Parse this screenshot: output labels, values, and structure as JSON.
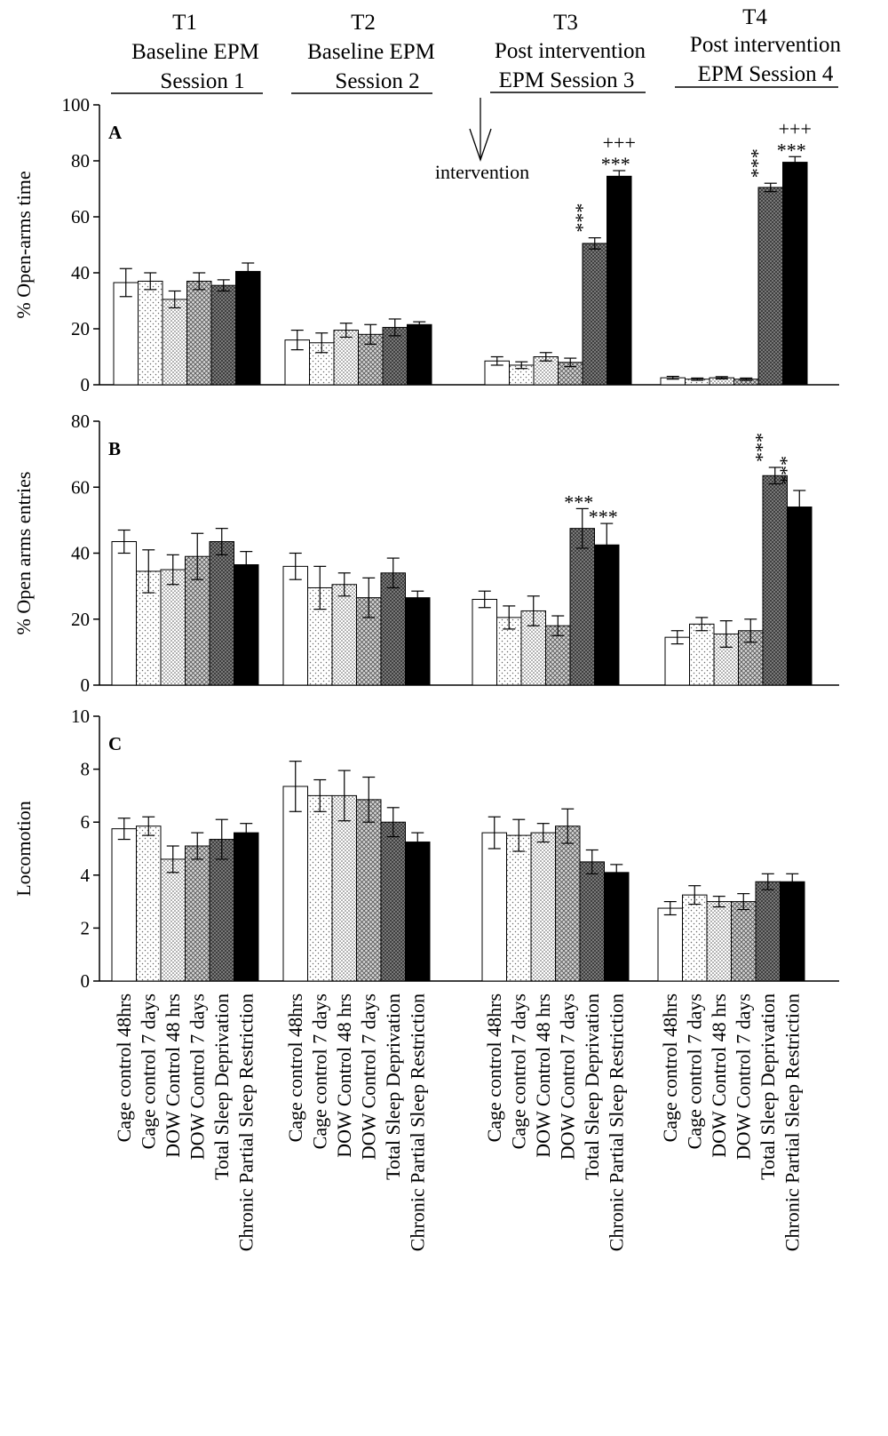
{
  "colors": {
    "cage_48": "#ffffff",
    "cage_7": "#ffffff",
    "dow_48": "#ffffff",
    "dow_7": "#ffffff",
    "tsd": "#6e6e6e",
    "cpsr": "#000000"
  },
  "fills": [
    "plain",
    "sparse-dots",
    "dense-dots",
    "crosshatch",
    "dark-crosshatch",
    "solid"
  ],
  "headers": [
    {
      "line1": "T1",
      "line2": "Baseline EPM",
      "line3": "Session 1"
    },
    {
      "line1": "T2",
      "line2": "Baseline EPM",
      "line3": "Session 2"
    },
    {
      "line1": "T3",
      "line2": "Post intervention",
      "line3": "EPM Session 3"
    },
    {
      "line1": "T4",
      "line2": "Post intervention",
      "line3": "EPM Session 4"
    }
  ],
  "intervention_label": "intervention",
  "category_labels": [
    "Cage control 48hrs",
    "Cage control 7 days",
    "DOW  Control 48 hrs",
    "DOW  Control 7 days",
    "Total Sleep Deprivation",
    "Chronic Partial Sleep  Restriction"
  ],
  "chart_data": [
    {
      "type": "bar",
      "panel_label": "A",
      "ylabel": "% Open-arms time",
      "ylim": [
        0,
        100
      ],
      "yticks": [
        "0",
        "20",
        "40",
        "60",
        "80",
        "100"
      ],
      "groups": [
        "T1",
        "T2",
        "T3",
        "T4"
      ],
      "series": [
        {
          "name": "Cage control 48hrs",
          "values": [
            36.5,
            16,
            8.5,
            2.5
          ],
          "errors": [
            5,
            3.5,
            1.5,
            0.5
          ]
        },
        {
          "name": "Cage control 7 days",
          "values": [
            37,
            15,
            7,
            2
          ],
          "errors": [
            3,
            3.5,
            1.2,
            0.4
          ]
        },
        {
          "name": "DOW  Control 48 hrs",
          "values": [
            30.5,
            19.5,
            10,
            2.5
          ],
          "errors": [
            3,
            2.5,
            1.5,
            0.4
          ]
        },
        {
          "name": "DOW  Control 7 days",
          "values": [
            37,
            18,
            8,
            2
          ],
          "errors": [
            3,
            3.5,
            1.5,
            0.4
          ]
        },
        {
          "name": "Total Sleep Deprivation",
          "values": [
            35.5,
            20.5,
            50.5,
            70.5
          ],
          "errors": [
            2,
            3,
            2,
            1.5
          ]
        },
        {
          "name": "Chronic Partial Sleep  Restriction",
          "values": [
            40.5,
            21.5,
            74.5,
            79.5
          ],
          "errors": [
            3,
            1,
            2,
            2
          ]
        }
      ],
      "annotations": [
        {
          "group": 2,
          "series": 4,
          "text": "***",
          "vertical": true
        },
        {
          "group": 2,
          "series": 5,
          "text": "***",
          "vertical": false
        },
        {
          "group": 2,
          "series": 5,
          "text": "+++",
          "vertical": false,
          "row": 2
        },
        {
          "group": 3,
          "series": 4,
          "text": "***",
          "vertical": true
        },
        {
          "group": 3,
          "series": 5,
          "text": "***",
          "vertical": false
        },
        {
          "group": 3,
          "series": 5,
          "text": "+++",
          "vertical": false,
          "row": 2
        }
      ]
    },
    {
      "type": "bar",
      "panel_label": "B",
      "ylabel": "% Open arms entries",
      "ylim": [
        0,
        80
      ],
      "yticks": [
        "0",
        "20",
        "40",
        "60",
        "80"
      ],
      "groups": [
        "T1",
        "T2",
        "T3",
        "T4"
      ],
      "series": [
        {
          "name": "Cage control 48hrs",
          "values": [
            43.5,
            36,
            26,
            14.5
          ],
          "errors": [
            3.5,
            4,
            2.5,
            2
          ]
        },
        {
          "name": "Cage control 7 days",
          "values": [
            34.5,
            29.5,
            20.5,
            18.5
          ],
          "errors": [
            6.5,
            6.5,
            3.5,
            2
          ]
        },
        {
          "name": "DOW  Control 48 hrs",
          "values": [
            35,
            30.5,
            22.5,
            15.5
          ],
          "errors": [
            4.5,
            3.5,
            4.5,
            4
          ]
        },
        {
          "name": "DOW  Control 7 days",
          "values": [
            39,
            26.5,
            18,
            16.5
          ],
          "errors": [
            7,
            6,
            3,
            3.5
          ]
        },
        {
          "name": "Total Sleep Deprivation",
          "values": [
            43.5,
            34,
            47.5,
            63.5
          ],
          "errors": [
            4,
            4.5,
            6,
            2.5
          ]
        },
        {
          "name": "Chronic Partial Sleep  Restriction",
          "values": [
            36.5,
            26.5,
            42.5,
            54
          ],
          "errors": [
            4,
            2,
            6.5,
            5
          ]
        }
      ],
      "annotations": [
        {
          "group": 2,
          "series": 4,
          "text": "***",
          "vertical": false
        },
        {
          "group": 2,
          "series": 5,
          "text": "***",
          "vertical": false
        },
        {
          "group": 3,
          "series": 4,
          "text": "***",
          "vertical": true
        },
        {
          "group": 3,
          "series": 5,
          "text": "***",
          "vertical": true
        }
      ]
    },
    {
      "type": "bar",
      "panel_label": "C",
      "ylabel": "Locomotion",
      "ylim": [
        0,
        10
      ],
      "yticks": [
        "0",
        "2",
        "4",
        "6",
        "8",
        "10"
      ],
      "groups": [
        "T1",
        "T2",
        "T3",
        "T4"
      ],
      "series": [
        {
          "name": "Cage control 48hrs",
          "values": [
            5.75,
            7.35,
            5.6,
            2.75
          ],
          "errors": [
            0.4,
            0.95,
            0.6,
            0.25
          ]
        },
        {
          "name": "Cage control 7 days",
          "values": [
            5.85,
            7,
            5.5,
            3.25
          ],
          "errors": [
            0.35,
            0.6,
            0.6,
            0.35
          ]
        },
        {
          "name": "DOW  Control 48 hrs",
          "values": [
            4.6,
            7,
            5.6,
            3
          ],
          "errors": [
            0.5,
            0.95,
            0.35,
            0.2
          ]
        },
        {
          "name": "DOW  Control 7 days",
          "values": [
            5.1,
            6.85,
            5.85,
            3
          ],
          "errors": [
            0.5,
            0.85,
            0.65,
            0.3
          ]
        },
        {
          "name": "Total Sleep Deprivation",
          "values": [
            5.35,
            6,
            4.5,
            3.75
          ],
          "errors": [
            0.75,
            0.55,
            0.45,
            0.3
          ]
        },
        {
          "name": "Chronic Partial Sleep  Restriction",
          "values": [
            5.6,
            5.25,
            4.1,
            3.75
          ],
          "errors": [
            0.35,
            0.35,
            0.3,
            0.3
          ]
        }
      ],
      "annotations": []
    }
  ]
}
